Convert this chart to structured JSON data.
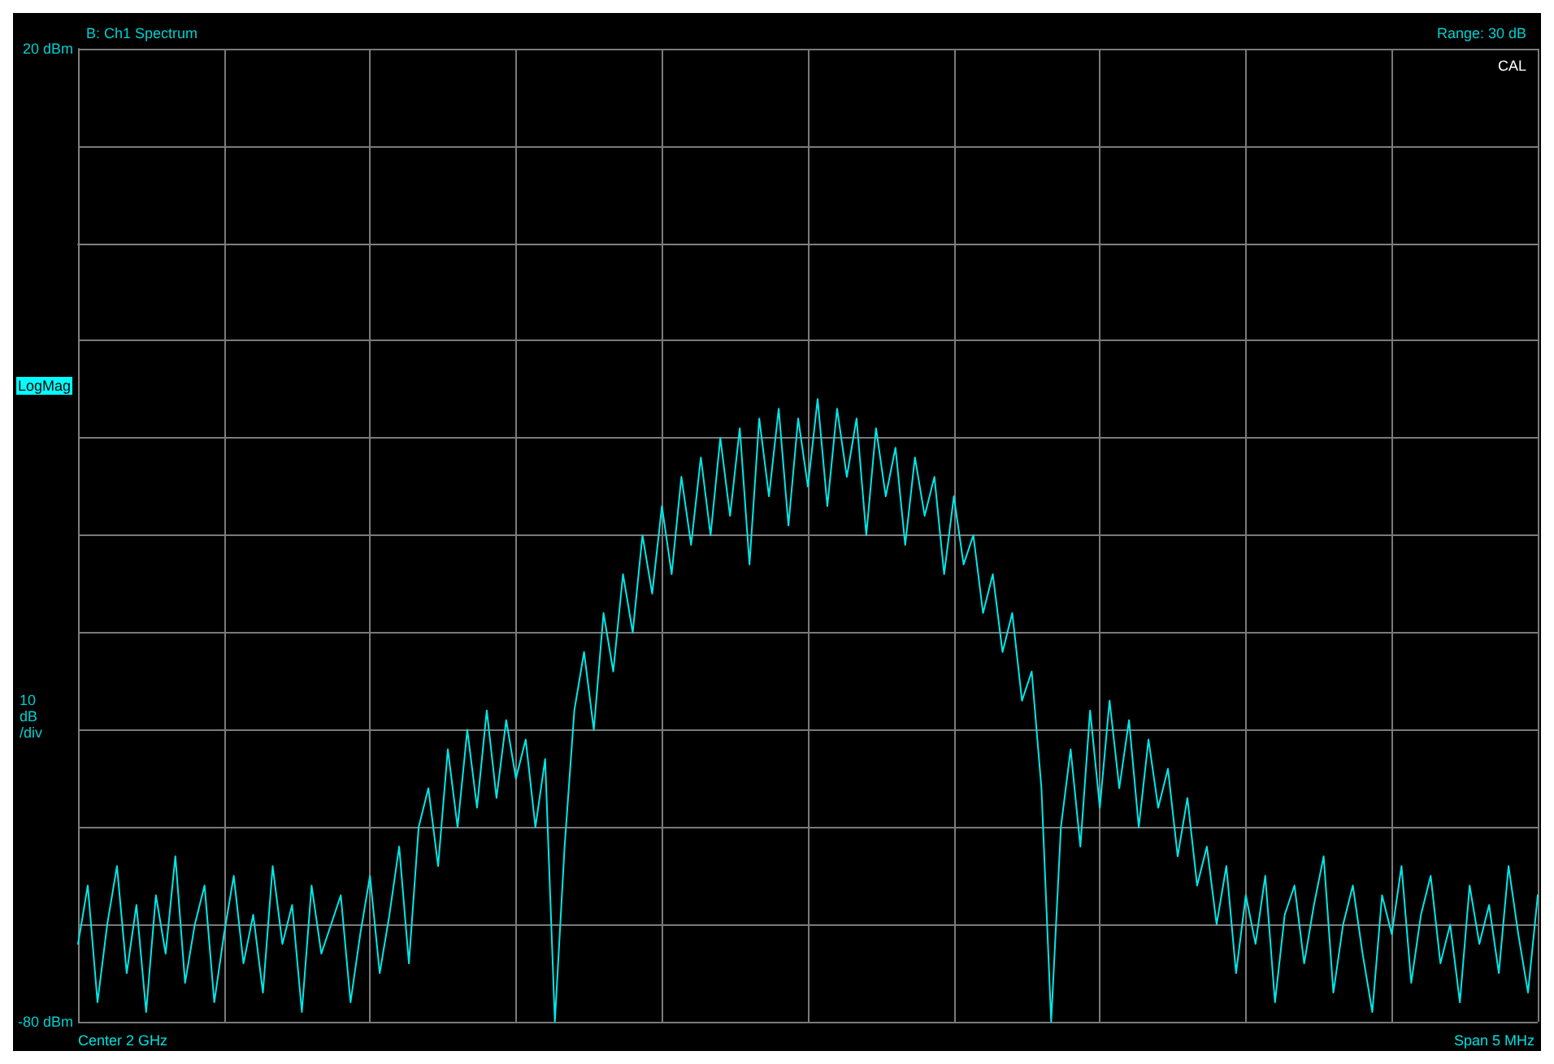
{
  "chart_data": {
    "type": "line",
    "title": "B: Ch1 Spectrum",
    "subtitle": "Range: 30 dB",
    "ylabel": "10 dB /div",
    "annotations": [
      "LogMag",
      "CAL",
      "Center 2 GHz",
      "Span 5 MHz"
    ],
    "categories": [
      null,
      null,
      null,
      null,
      null,
      null,
      null,
      null,
      null,
      null,
      null,
      null,
      null,
      null,
      null,
      null,
      null,
      null,
      null,
      null,
      null,
      null,
      null,
      null,
      null,
      null,
      null,
      null,
      null,
      null,
      null,
      null,
      null,
      null,
      null,
      null,
      null,
      null,
      null,
      null,
      null,
      null,
      null,
      null,
      null,
      null,
      null,
      null,
      null,
      null,
      null,
      null,
      null,
      null,
      null,
      null,
      null,
      null,
      null,
      null,
      null,
      null,
      null,
      null,
      null,
      null,
      null,
      null,
      null,
      null,
      null,
      null,
      null,
      null,
      null,
      null,
      null,
      null,
      null,
      null,
      null,
      null,
      null,
      null,
      null,
      null,
      null,
      null,
      null,
      null,
      null,
      null,
      null,
      null,
      null,
      null,
      null,
      null,
      null,
      null,
      null,
      null,
      null,
      null,
      null,
      null,
      null,
      null,
      null,
      null,
      null,
      null,
      null,
      null,
      null,
      null,
      null,
      null,
      null,
      null,
      null,
      null,
      null,
      null,
      null,
      null,
      null,
      null,
      null,
      null,
      null,
      null,
      null,
      null,
      null,
      null,
      null,
      null,
      null,
      null,
      null,
      null,
      null,
      null,
      null,
      null,
      null,
      null,
      null,
      null,
      null
    ],
    "series": [
      {
        "color": "#00e8e8",
        "values": [
          -72,
          -66,
          -78,
          -70,
          -64,
          -75,
          -68,
          -79,
          -67,
          -73,
          -63,
          -76,
          -70,
          -66,
          -78,
          -71,
          -65,
          -74,
          -69,
          -77,
          -64,
          -72,
          -68,
          -79,
          -66,
          -73,
          -70,
          -67,
          -78,
          -71,
          -65,
          -75,
          -69,
          -62,
          -74,
          -60,
          -56,
          -64,
          -52,
          -60,
          -50,
          -58,
          -48,
          -57,
          -49,
          -55,
          -51,
          -60,
          -53,
          -80,
          -62,
          -48,
          -42,
          -50,
          -38,
          -44,
          -34,
          -40,
          -30,
          -36,
          -27,
          -34,
          -24,
          -31,
          -22,
          -30,
          -20,
          -28,
          -19,
          -33,
          -18,
          -26,
          -17,
          -29,
          -18,
          -25,
          -16,
          -27,
          -17,
          -24,
          -18,
          -30,
          -19,
          -26,
          -21,
          -31,
          -22,
          -28,
          -24,
          -34,
          -26,
          -33,
          -30,
          -38,
          -34,
          -42,
          -38,
          -47,
          -44,
          -56,
          -80,
          -60,
          -52,
          -62,
          -48,
          -58,
          -47,
          -56,
          -49,
          -60,
          -51,
          -58,
          -54,
          -63,
          -57,
          -66,
          -62,
          -70,
          -64,
          -75,
          -67,
          -72,
          -65,
          -78,
          -69,
          -66,
          -74,
          -68,
          -63,
          -77,
          -70,
          -66,
          -73,
          -79,
          -67,
          -71,
          -64,
          -76,
          -69,
          -65,
          -74,
          -70,
          -78,
          -66,
          -72,
          -68,
          -75,
          -64,
          -71,
          -77,
          -67
        ]
      }
    ],
    "ylim": [
      -80,
      20
    ],
    "yticks": [
      {
        "value": 20,
        "label": "20 dBm"
      },
      {
        "value": 10,
        "label": null
      },
      {
        "value": 0,
        "label": null
      },
      {
        "value": -10,
        "label": null
      },
      {
        "value": -20,
        "label": null
      },
      {
        "value": -30,
        "label": null
      },
      {
        "value": -40,
        "label": null
      },
      {
        "value": -50,
        "label": null
      },
      {
        "value": -60,
        "label": null
      },
      {
        "value": -70,
        "label": null
      },
      {
        "value": -80,
        "label": "-80 dBm"
      }
    ],
    "grid": true,
    "tick_labels": "y"
  }
}
